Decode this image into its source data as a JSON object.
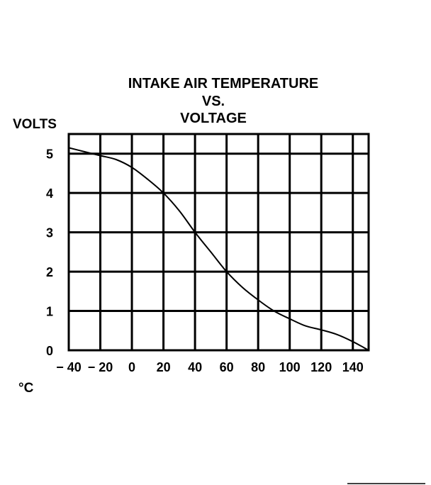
{
  "chart_data": {
    "type": "line",
    "title_lines": [
      "INTAKE AIR TEMPERATURE",
      "VS.",
      "VOLTAGE"
    ],
    "ylabel": "VOLTS",
    "xlabel": "°C",
    "x_ticks": [
      {
        "value": -40,
        "label": "− 40"
      },
      {
        "value": -20,
        "label": "− 20"
      },
      {
        "value": 0,
        "label": "0"
      },
      {
        "value": 20,
        "label": "20"
      },
      {
        "value": 40,
        "label": "40"
      },
      {
        "value": 60,
        "label": "60"
      },
      {
        "value": 80,
        "label": "80"
      },
      {
        "value": 100,
        "label": "100"
      },
      {
        "value": 120,
        "label": "120"
      },
      {
        "value": 140,
        "label": "140"
      }
    ],
    "y_ticks": [
      {
        "value": 0,
        "label": "0"
      },
      {
        "value": 1,
        "label": "1"
      },
      {
        "value": 2,
        "label": "2"
      },
      {
        "value": 3,
        "label": "3"
      },
      {
        "value": 4,
        "label": "4"
      },
      {
        "value": 5,
        "label": "5"
      }
    ],
    "xlim": [
      -40,
      150
    ],
    "ylim": [
      0,
      5.5
    ],
    "grid": true,
    "series": [
      {
        "x": [
          -40,
          -30,
          -20,
          -10,
          0,
          10,
          20,
          30,
          40,
          50,
          60,
          70,
          80,
          90,
          100,
          110,
          120,
          130,
          140,
          150
        ],
        "y": [
          5.15,
          5.05,
          4.95,
          4.85,
          4.65,
          4.35,
          4.0,
          3.55,
          3.0,
          2.5,
          2.0,
          1.6,
          1.28,
          1.0,
          0.8,
          0.62,
          0.52,
          0.4,
          0.22,
          0.0
        ]
      }
    ]
  }
}
